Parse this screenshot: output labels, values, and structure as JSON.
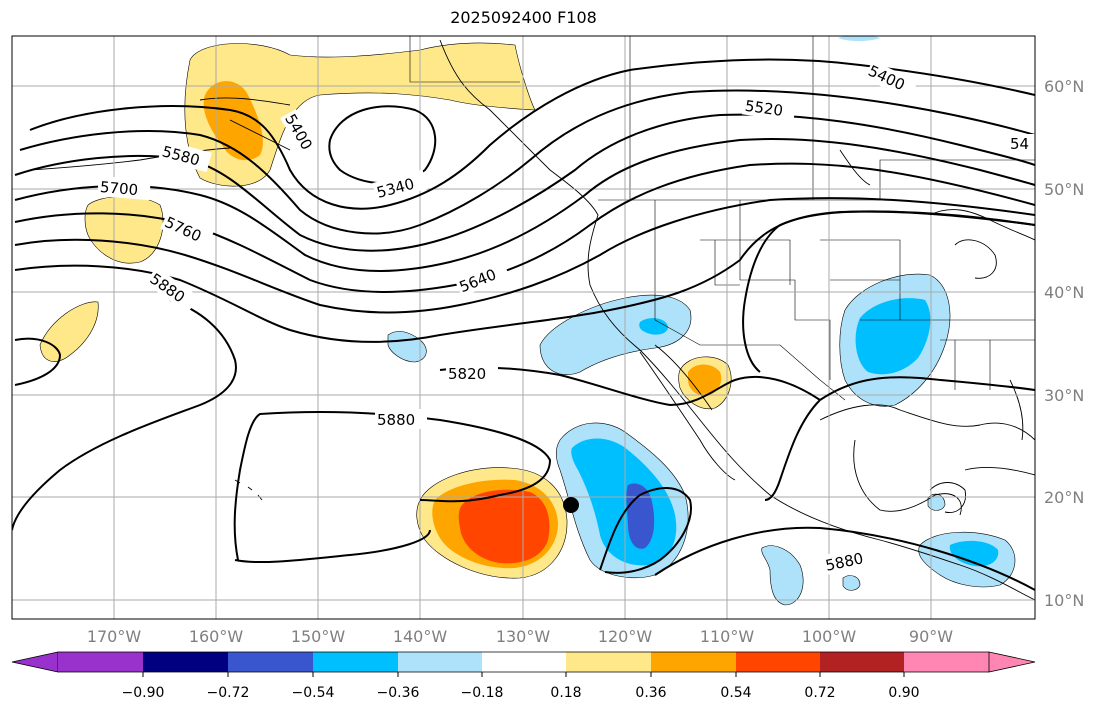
{
  "title": "2025092400 F108",
  "lon_labels": [
    "170°W",
    "160°W",
    "150°W",
    "140°W",
    "130°W",
    "120°W",
    "110°W",
    "100°W",
    "90°W"
  ],
  "lat_labels": [
    "60°N",
    "50°N",
    "40°N",
    "30°N",
    "20°N",
    "10°N"
  ],
  "contour_labels": {
    "c5400a": "5400",
    "c5400b": "5400",
    "c5400c": "54",
    "c5520": "5520",
    "c5580": "5580",
    "c5340": "5340",
    "c5700": "5700",
    "c5760": "5760",
    "c5640": "5640",
    "c5880a": "5880",
    "c5820": "5820",
    "c5880b": "5880",
    "c5880c": "5880"
  },
  "colorbar": {
    "ticks": [
      "−0.90",
      "−0.72",
      "−0.54",
      "−0.36",
      "−0.18",
      "0.18",
      "0.36",
      "0.54",
      "0.72",
      "0.90"
    ],
    "colors": {
      "under": "#9932cc",
      "bins": [
        "#000080",
        "#3a56cf",
        "#00bfff",
        "#ade2fa",
        "#ffffff",
        "#ffe88a",
        "#ffa500",
        "#ff4500",
        "#b22222"
      ],
      "over": "#ff85b3"
    }
  }
}
